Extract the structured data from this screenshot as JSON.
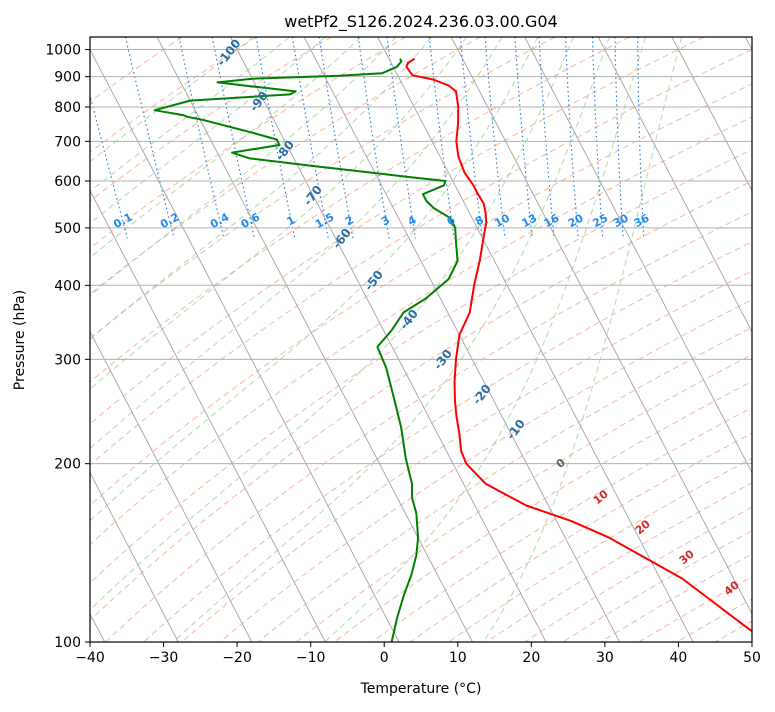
{
  "chart_data": {
    "type": "line",
    "title": "wetPf2_S126.2024.236.03.00.G04",
    "xlabel": "Temperature (°C)",
    "ylabel": "Pressure (hPa)",
    "xlim": [
      -40,
      50
    ],
    "ylim": [
      1050,
      100
    ],
    "y_scale": "log",
    "x_ticks": [
      -40,
      -30,
      -20,
      -10,
      0,
      10,
      20,
      30,
      40,
      50
    ],
    "y_ticks": [
      100,
      200,
      300,
      400,
      500,
      600,
      700,
      800,
      900,
      1000
    ],
    "grid": true,
    "skew": "isotherms slanted up-right (skew-T)",
    "series": [
      {
        "name": "",
        "color": "#ff0000",
        "points": [
          [
            3.5,
            965
          ],
          [
            2.3,
            950
          ],
          [
            1.8,
            935
          ],
          [
            2,
            905
          ],
          [
            4.5,
            890
          ],
          [
            6.2,
            870
          ],
          [
            6.8,
            850
          ],
          [
            6,
            800
          ],
          [
            4.8,
            750
          ],
          [
            3.3,
            700
          ],
          [
            2.5,
            660
          ],
          [
            2.2,
            620
          ],
          [
            2.5,
            590
          ],
          [
            2.5,
            570
          ],
          [
            2.6,
            550
          ],
          [
            2.2,
            530
          ],
          [
            1.6,
            510
          ],
          [
            0.6,
            490
          ],
          [
            -2,
            440
          ],
          [
            -4.5,
            400
          ],
          [
            -7,
            360
          ],
          [
            -10,
            330
          ],
          [
            -12.2,
            300
          ],
          [
            -14,
            275
          ],
          [
            -15.3,
            255
          ],
          [
            -16.2,
            240
          ],
          [
            -17,
            225
          ],
          [
            -18,
            210
          ],
          [
            -18.2,
            200
          ],
          [
            -17,
            185
          ],
          [
            -13,
            170
          ],
          [
            -8,
            160
          ],
          [
            -4,
            150
          ],
          [
            -1,
            140
          ],
          [
            3,
            128
          ],
          [
            6,
            115
          ],
          [
            8,
            107
          ],
          [
            10,
            100
          ]
        ]
      },
      {
        "name": "",
        "color": "#008000",
        "points": [
          [
            1.5,
            965
          ],
          [
            1.5,
            955
          ],
          [
            0.5,
            935
          ],
          [
            -2,
            912
          ],
          [
            -8,
            903
          ],
          [
            -20,
            893
          ],
          [
            -25,
            880
          ],
          [
            -20,
            865
          ],
          [
            -15,
            850
          ],
          [
            -16,
            840
          ],
          [
            -30,
            820
          ],
          [
            -35.5,
            790
          ],
          [
            -32,
            775
          ],
          [
            -31.5,
            770
          ],
          [
            -29.5,
            760
          ],
          [
            -24,
            725
          ],
          [
            -21,
            705
          ],
          [
            -21,
            690
          ],
          [
            -28,
            670
          ],
          [
            -26,
            655
          ],
          [
            -17.5,
            635
          ],
          [
            -6,
            610
          ],
          [
            -1,
            600
          ],
          [
            -1.5,
            590
          ],
          [
            -5,
            570
          ],
          [
            -5,
            555
          ],
          [
            -4.5,
            540
          ],
          [
            -3,
            520
          ],
          [
            -3,
            500
          ],
          [
            -4,
            470
          ],
          [
            -5,
            440
          ],
          [
            -7.5,
            410
          ],
          [
            -12,
            380
          ],
          [
            -16,
            360
          ],
          [
            -19,
            335
          ],
          [
            -22,
            315
          ],
          [
            -22.3,
            290
          ],
          [
            -23.5,
            255
          ],
          [
            -24.5,
            230
          ],
          [
            -26,
            205
          ],
          [
            -26.5,
            195
          ],
          [
            -27,
            185
          ],
          [
            -28,
            175
          ],
          [
            -28.5,
            165
          ],
          [
            -30,
            150
          ],
          [
            -31.5,
            140
          ],
          [
            -33.5,
            130
          ],
          [
            -36,
            120
          ],
          [
            -38.5,
            110
          ],
          [
            -41,
            100
          ]
        ]
      }
    ],
    "dry_adiabat_labels": [
      "-100",
      "-90",
      "-80",
      "-70",
      "-60",
      "-50",
      "-40",
      "-30",
      "-20",
      "-10"
    ],
    "mixing_ratio_labels": [
      "0.1",
      "0.2",
      "0.4",
      "0.6",
      "1",
      "1.5",
      "2",
      "3",
      "4",
      "6",
      "8",
      "10",
      "13",
      "16",
      "20",
      "25",
      "30",
      "36"
    ],
    "moist_adiabat_labels": [
      "0",
      "10",
      "20",
      "30",
      "40"
    ]
  }
}
